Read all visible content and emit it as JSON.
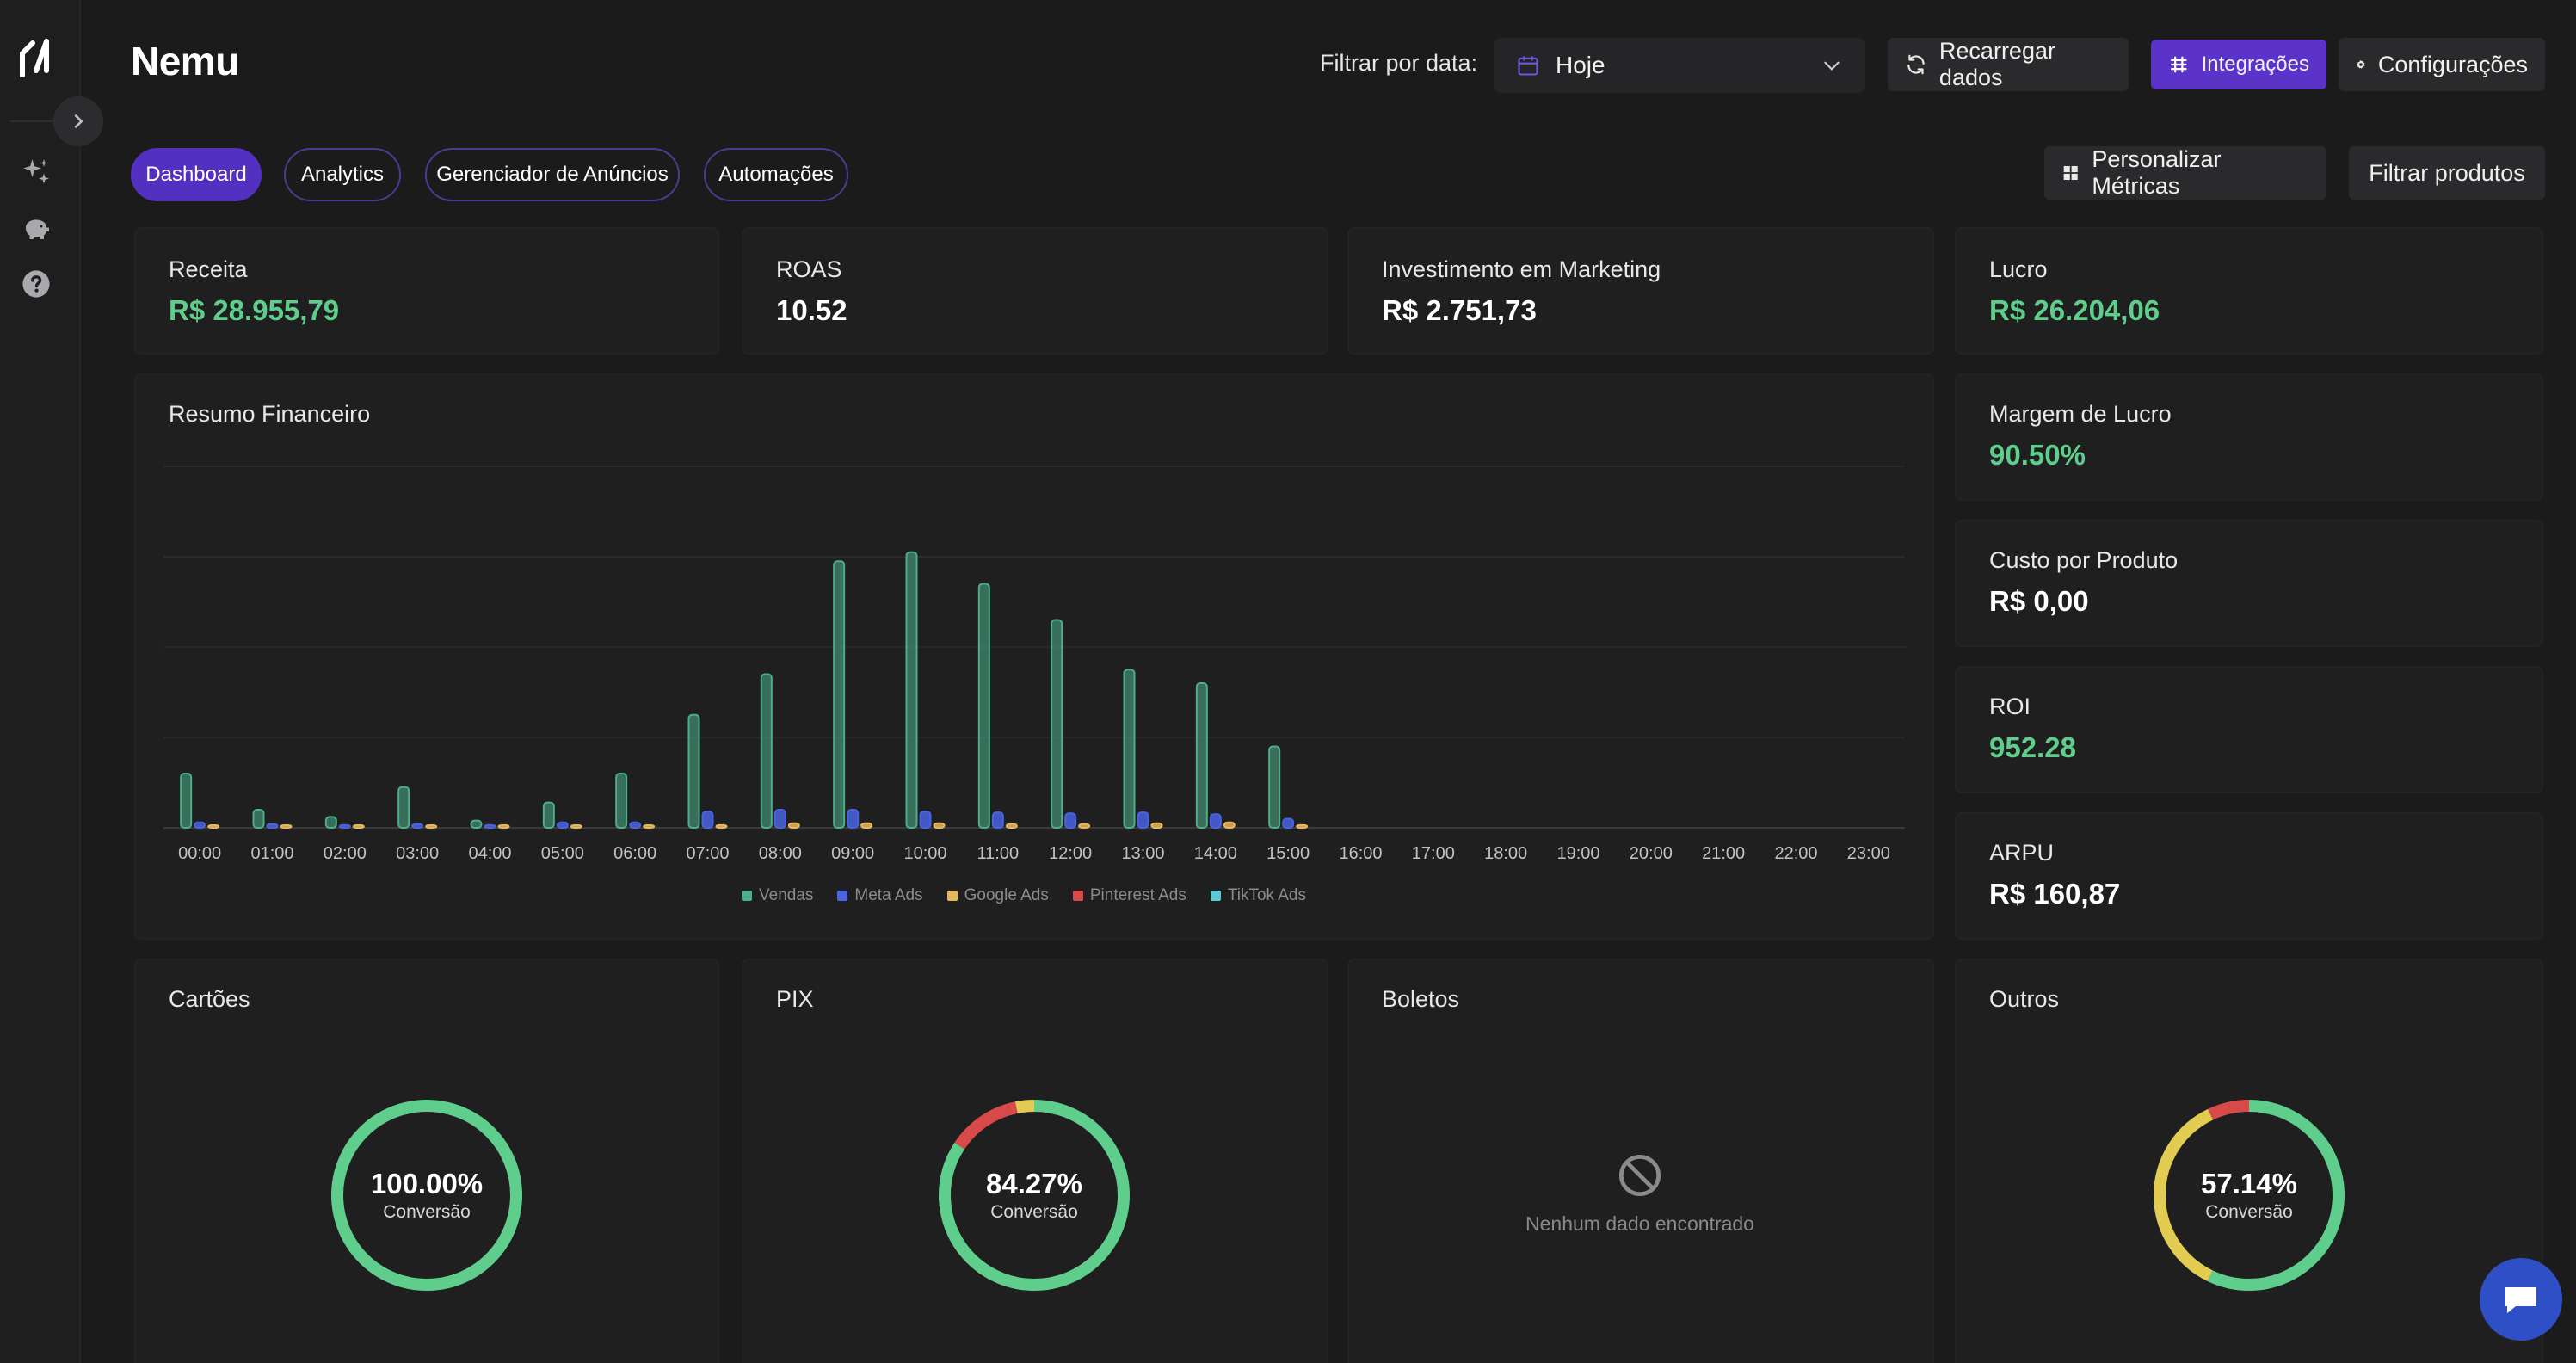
{
  "app": {
    "title": "Nemu"
  },
  "header": {
    "filter_label": "Filtrar por data:",
    "date_value": "Hoje",
    "reload_label": "Recarregar dados",
    "integrations_label": "Integrações",
    "settings_label": "Configurações"
  },
  "tabs": [
    {
      "label": "Dashboard",
      "active": true
    },
    {
      "label": "Analytics",
      "active": false
    },
    {
      "label": "Gerenciador de Anúncios",
      "active": false
    },
    {
      "label": "Automações",
      "active": false
    }
  ],
  "actions": {
    "customize_metrics": "Personalizar Métricas",
    "filter_products": "Filtrar produtos"
  },
  "metrics": {
    "receita": {
      "label": "Receita",
      "value": "R$ 28.955,79"
    },
    "roas": {
      "label": "ROAS",
      "value": "10.52"
    },
    "investimento": {
      "label": "Investimento em Marketing",
      "value": "R$ 2.751,73"
    },
    "lucro": {
      "label": "Lucro",
      "value": "R$ 26.204,06"
    },
    "margem": {
      "label": "Margem de Lucro",
      "value": "90.50%"
    },
    "custo_produto": {
      "label": "Custo por Produto",
      "value": "R$ 0,00"
    },
    "roi": {
      "label": "ROI",
      "value": "952.28"
    },
    "arpu": {
      "label": "ARPU",
      "value": "R$ 160,87"
    }
  },
  "chart_title": "Resumo Financeiro",
  "chart_data": {
    "type": "bar",
    "title": "Resumo Financeiro",
    "categories": [
      "00:00",
      "01:00",
      "02:00",
      "03:00",
      "04:00",
      "05:00",
      "06:00",
      "07:00",
      "08:00",
      "09:00",
      "10:00",
      "11:00",
      "12:00",
      "13:00",
      "14:00",
      "15:00",
      "16:00",
      "17:00",
      "18:00",
      "19:00",
      "20:00",
      "21:00",
      "22:00",
      "23:00"
    ],
    "series": [
      {
        "name": "Vendas",
        "color": "#4cae8a",
        "values": [
          600,
          200,
          120,
          450,
          80,
          280,
          600,
          1250,
          1700,
          2950,
          3050,
          2700,
          2300,
          1750,
          1600,
          900,
          0,
          0,
          0,
          0,
          0,
          0,
          0,
          0
        ]
      },
      {
        "name": "Meta Ads",
        "color": "#4a63e0",
        "values": [
          60,
          40,
          30,
          40,
          30,
          60,
          60,
          180,
          200,
          200,
          180,
          170,
          160,
          170,
          150,
          100,
          0,
          0,
          0,
          0,
          0,
          0,
          0,
          0
        ]
      },
      {
        "name": "Google Ads",
        "color": "#e7b75a",
        "values": [
          20,
          20,
          20,
          20,
          20,
          20,
          20,
          30,
          50,
          50,
          50,
          40,
          40,
          50,
          60,
          30,
          0,
          0,
          0,
          0,
          0,
          0,
          0,
          0
        ]
      },
      {
        "name": "Pinterest Ads",
        "color": "#d84a4a",
        "values": [
          0,
          0,
          0,
          0,
          0,
          0,
          0,
          0,
          0,
          0,
          0,
          0,
          0,
          0,
          0,
          0,
          0,
          0,
          0,
          0,
          0,
          0,
          0,
          0
        ]
      },
      {
        "name": "TikTok Ads",
        "color": "#5cc8d8",
        "values": [
          0,
          0,
          0,
          0,
          0,
          0,
          0,
          0,
          0,
          0,
          0,
          0,
          0,
          0,
          0,
          0,
          0,
          0,
          0,
          0,
          0,
          0,
          0,
          0
        ]
      }
    ],
    "ylim": [
      0,
      4000
    ],
    "grid": true,
    "legend": "bottom-center"
  },
  "payments": {
    "cartoes": {
      "label": "Cartões",
      "pct": "100.00%",
      "sub": "Conversão",
      "segments": [
        {
          "value": 100,
          "color": "#5fce8c"
        }
      ]
    },
    "pix": {
      "label": "PIX",
      "pct": "84.27%",
      "sub": "Conversão",
      "segments": [
        {
          "value": 84.27,
          "color": "#5fce8c"
        },
        {
          "value": 12.5,
          "color": "#d84a4a"
        },
        {
          "value": 3.23,
          "color": "#e2cc52"
        }
      ]
    },
    "boletos": {
      "label": "Boletos",
      "empty_text": "Nenhum dado encontrado"
    },
    "outros": {
      "label": "Outros",
      "pct": "57.14%",
      "sub": "Conversão",
      "segments": [
        {
          "value": 57.14,
          "color": "#5fce8c"
        },
        {
          "value": 35.72,
          "color": "#e2cc52"
        },
        {
          "value": 7.14,
          "color": "#d84a4a"
        }
      ]
    }
  }
}
